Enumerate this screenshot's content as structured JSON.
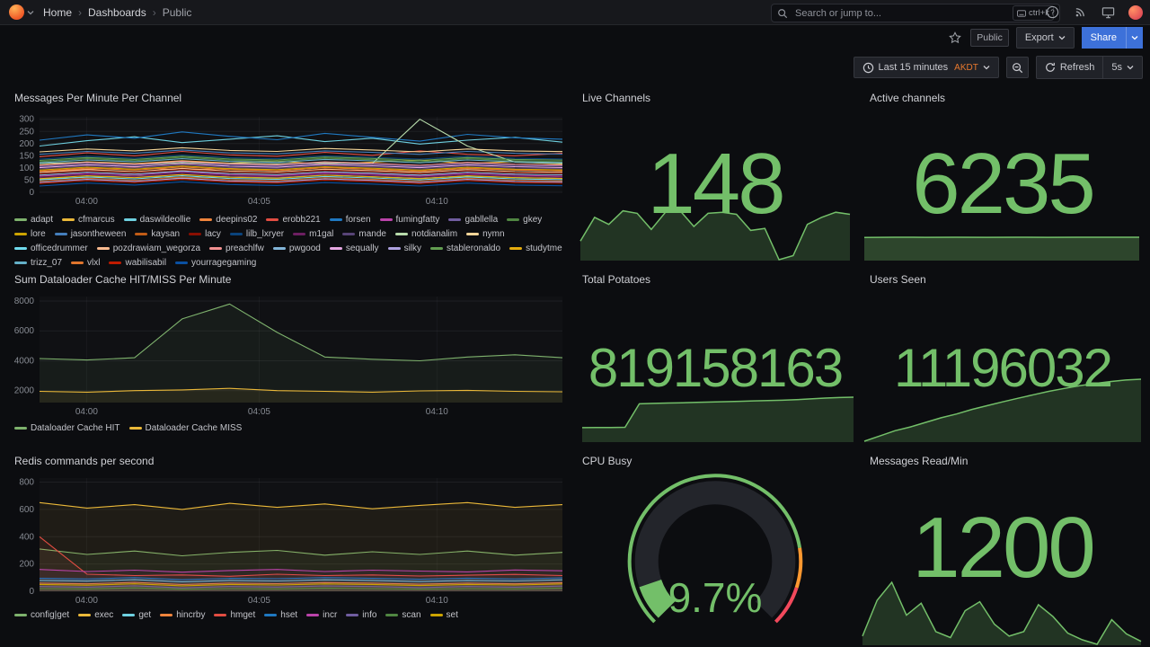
{
  "nav": {
    "breadcrumbs": [
      "Home",
      "Dashboards",
      "Public"
    ],
    "search_placeholder": "Search or jump to...",
    "search_shortcut": "ctrl+k"
  },
  "toolbar": {
    "visibility_badge": "Public",
    "export_label": "Export",
    "share_label": "Share"
  },
  "timebar": {
    "range_label": "Last 15 minutes",
    "timezone": "AKDT",
    "refresh_label": "Refresh",
    "interval": "5s"
  },
  "icons": [
    "grafana-logo",
    "chevron-down",
    "search",
    "keyboard",
    "help-circle",
    "news",
    "monitor",
    "avatar",
    "star",
    "clock",
    "zoom-out",
    "refresh"
  ],
  "colors": {
    "background": "#0c0d10",
    "stat_green": "#73BF69",
    "share_blue": "#3d71d9",
    "timezone_orange": "#e8792e"
  },
  "panels": {
    "messages": {
      "title": "Messages Per Minute Per Channel"
    },
    "live_channels": {
      "title": "Live Channels",
      "value": "148"
    },
    "active_channels": {
      "title": "Active channels",
      "value": "6235"
    },
    "dataloader": {
      "title": "Sum Dataloader Cache HIT/MISS Per Minute"
    },
    "total_potatoes": {
      "title": "Total Potatoes",
      "value": "819158163"
    },
    "users_seen": {
      "title": "Users Seen",
      "value": "11196032"
    },
    "redis": {
      "title": "Redis commands per second"
    },
    "cpu": {
      "title": "CPU Busy",
      "value": "9.7%"
    },
    "messages_read": {
      "title": "Messages Read/Min",
      "value": "1200"
    }
  },
  "chart_data": {
    "messages_per_minute": {
      "type": "line",
      "title": "Messages Per Minute Per Channel",
      "ylim": [
        0,
        310
      ],
      "yticks": [
        0,
        50,
        100,
        150,
        200,
        250,
        300
      ],
      "xticks": [
        {
          "label": "04:00",
          "pos": 0.09
        },
        {
          "label": "04:05",
          "pos": 0.42
        },
        {
          "label": "04:10",
          "pos": 0.76
        }
      ],
      "fill": false,
      "series": [
        {
          "name": "adapt",
          "color": "#7EB26D",
          "values": [
            55,
            62,
            70,
            58,
            66,
            60,
            72,
            64,
            58,
            66,
            61,
            57
          ]
        },
        {
          "name": "cfmarcus",
          "color": "#EAB839",
          "values": [
            112,
            125,
            118,
            130,
            120,
            128,
            115,
            124,
            132,
            119,
            126,
            116
          ]
        },
        {
          "name": "daswildeollie",
          "color": "#6ED0E0",
          "values": [
            190,
            212,
            228,
            204,
            218,
            232,
            208,
            222,
            198,
            214,
            226,
            206
          ]
        },
        {
          "name": "deepins02",
          "color": "#EF843C",
          "values": [
            86,
            95,
            104,
            90,
            98,
            88,
            102,
            94,
            86,
            98,
            92,
            88
          ]
        },
        {
          "name": "erobb221",
          "color": "#E24D42",
          "values": [
            146,
            162,
            150,
            168,
            154,
            148,
            164,
            152,
            170,
            156,
            150,
            160
          ]
        },
        {
          "name": "forsen",
          "color": "#1F78C1",
          "values": [
            214,
            236,
            222,
            248,
            230,
            216,
            242,
            226,
            210,
            238,
            224,
            218
          ]
        },
        {
          "name": "fumingfatty",
          "color": "#BA43A9",
          "values": [
            66,
            78,
            70,
            84,
            72,
            68,
            80,
            74,
            66,
            78,
            70,
            66
          ]
        },
        {
          "name": "gabllella",
          "color": "#705DA0",
          "values": [
            106,
            118,
            110,
            124,
            112,
            108,
            120,
            114,
            106,
            118,
            110,
            108
          ]
        },
        {
          "name": "gkey",
          "color": "#508642",
          "values": [
            126,
            138,
            130,
            144,
            132,
            128,
            140,
            134,
            126,
            138,
            130,
            126
          ]
        },
        {
          "name": "lore",
          "color": "#CCA300",
          "values": [
            91,
            103,
            95,
            108,
            97,
            93,
            105,
            99,
            91,
            103,
            95,
            92
          ]
        },
        {
          "name": "jasontheween",
          "color": "#447EBC",
          "values": [
            156,
            168,
            160,
            174,
            162,
            158,
            170,
            164,
            156,
            168,
            160,
            157
          ]
        },
        {
          "name": "kaysan",
          "color": "#C15C17",
          "values": [
            46,
            58,
            50,
            63,
            52,
            48,
            60,
            54,
            46,
            58,
            50,
            47
          ]
        },
        {
          "name": "lacy",
          "color": "#890F02",
          "values": [
            76,
            88,
            80,
            93,
            82,
            78,
            90,
            84,
            76,
            88,
            80,
            77
          ]
        },
        {
          "name": "lilb_lxryer",
          "color": "#0A437C",
          "values": [
            136,
            148,
            140,
            153,
            142,
            138,
            150,
            144,
            136,
            148,
            140,
            137
          ]
        },
        {
          "name": "m1gal",
          "color": "#6D1F62",
          "values": [
            61,
            73,
            65,
            78,
            67,
            63,
            75,
            69,
            61,
            73,
            65,
            62
          ]
        },
        {
          "name": "mande",
          "color": "#584477",
          "values": [
            96,
            108,
            100,
            113,
            102,
            98,
            110,
            104,
            96,
            108,
            100,
            97
          ]
        },
        {
          "name": "notdianalim",
          "color": "#B7DBAB",
          "values": [
            118,
            124,
            116,
            122,
            119,
            117,
            121,
            118,
            300,
            190,
            124,
            118
          ]
        },
        {
          "name": "nymn",
          "color": "#F4D598",
          "values": [
            166,
            178,
            170,
            183,
            172,
            168,
            180,
            174,
            166,
            178,
            170,
            167
          ]
        },
        {
          "name": "officedrummer",
          "color": "#70DBED",
          "values": [
            51,
            63,
            55,
            68,
            57,
            53,
            65,
            59,
            51,
            63,
            55,
            52
          ]
        },
        {
          "name": "pozdrawiam_wegorza",
          "color": "#F9BA8F",
          "values": [
            81,
            93,
            85,
            98,
            87,
            83,
            95,
            89,
            81,
            93,
            85,
            82
          ]
        },
        {
          "name": "preachlfw",
          "color": "#F29191",
          "values": [
            111,
            123,
            115,
            128,
            117,
            113,
            125,
            119,
            111,
            123,
            115,
            112
          ]
        },
        {
          "name": "pwgood",
          "color": "#82B5D8",
          "values": [
            71,
            83,
            75,
            88,
            77,
            73,
            85,
            79,
            71,
            83,
            75,
            72
          ]
        },
        {
          "name": "sequally",
          "color": "#E5A8E2",
          "values": [
            101,
            113,
            105,
            118,
            107,
            103,
            115,
            109,
            101,
            113,
            105,
            102
          ]
        },
        {
          "name": "silky",
          "color": "#AEA2E0",
          "values": [
            41,
            53,
            45,
            58,
            47,
            43,
            55,
            49,
            41,
            53,
            45,
            42
          ]
        },
        {
          "name": "stableronaldo",
          "color": "#629E51",
          "values": [
            131,
            143,
            135,
            148,
            137,
            133,
            145,
            139,
            131,
            143,
            135,
            132
          ]
        },
        {
          "name": "studytme",
          "color": "#E5AC0E",
          "values": [
            56,
            68,
            60,
            73,
            62,
            58,
            70,
            64,
            56,
            68,
            60,
            57
          ]
        },
        {
          "name": "trizz_07",
          "color": "#64B0C8",
          "values": [
            121,
            133,
            125,
            138,
            127,
            123,
            135,
            129,
            121,
            133,
            125,
            122
          ]
        },
        {
          "name": "vlxl",
          "color": "#E0752D",
          "values": [
            87,
            99,
            91,
            104,
            93,
            89,
            101,
            95,
            87,
            99,
            91,
            88
          ]
        },
        {
          "name": "wabilisabil",
          "color": "#BF1B00",
          "values": [
            36,
            48,
            40,
            53,
            42,
            38,
            50,
            44,
            36,
            48,
            40,
            37
          ]
        },
        {
          "name": "yourragegaming",
          "color": "#0A50A1",
          "values": [
            26,
            38,
            30,
            43,
            32,
            28,
            40,
            34,
            26,
            38,
            30,
            27
          ]
        }
      ]
    },
    "dataloader_cache": {
      "type": "line",
      "title": "Sum Dataloader Cache HIT/MISS Per Minute",
      "ylim": [
        1200,
        8300
      ],
      "yticks": [
        2000,
        4000,
        6000,
        8000
      ],
      "xticks": [
        {
          "label": "04:00",
          "pos": 0.09
        },
        {
          "label": "04:05",
          "pos": 0.42
        },
        {
          "label": "04:10",
          "pos": 0.76
        }
      ],
      "fill": true,
      "series": [
        {
          "name": "Dataloader Cache HIT",
          "color": "#7EB26D",
          "values": [
            4150,
            4050,
            4200,
            6800,
            7800,
            5900,
            4250,
            4100,
            4000,
            4250,
            4400,
            4200
          ]
        },
        {
          "name": "Dataloader Cache MISS",
          "color": "#EAB839",
          "values": [
            1950,
            1900,
            2000,
            2050,
            2150,
            2000,
            1950,
            1900,
            1980,
            2020,
            1950,
            1920
          ]
        }
      ]
    },
    "redis_commands": {
      "type": "line",
      "title": "Redis commands per second",
      "ylim": [
        0,
        830
      ],
      "yticks": [
        0,
        200,
        400,
        600,
        800
      ],
      "xticks": [
        {
          "label": "04:00",
          "pos": 0.09
        },
        {
          "label": "04:05",
          "pos": 0.42
        },
        {
          "label": "04:10",
          "pos": 0.76
        }
      ],
      "fill": true,
      "series": [
        {
          "name": "config|get",
          "color": "#7EB26D",
          "values": [
            310,
            270,
            295,
            260,
            285,
            300,
            265,
            290,
            270,
            295,
            265,
            285
          ]
        },
        {
          "name": "exec",
          "color": "#EAB839",
          "values": [
            650,
            610,
            635,
            600,
            645,
            615,
            640,
            605,
            630,
            650,
            615,
            635
          ]
        },
        {
          "name": "get",
          "color": "#6ED0E0",
          "values": [
            80,
            75,
            85,
            70,
            80,
            76,
            84,
            80,
            72,
            80,
            76,
            84
          ]
        },
        {
          "name": "hincrby",
          "color": "#EF843C",
          "values": [
            60,
            55,
            65,
            50,
            60,
            56,
            64,
            60,
            52,
            60,
            55,
            63
          ]
        },
        {
          "name": "hmget",
          "color": "#E24D42",
          "values": [
            400,
            125,
            115,
            120,
            110,
            125,
            115,
            120,
            112,
            118,
            124,
            115
          ]
        },
        {
          "name": "hset",
          "color": "#1F78C1",
          "values": [
            95,
            90,
            100,
            85,
            95,
            92,
            100,
            95,
            88,
            96,
            90,
            98
          ]
        },
        {
          "name": "incr",
          "color": "#BA43A9",
          "values": [
            160,
            145,
            155,
            140,
            152,
            160,
            145,
            155,
            148,
            142,
            156,
            150
          ]
        },
        {
          "name": "info",
          "color": "#705DA0",
          "values": [
            35,
            30,
            40,
            25,
            35,
            31,
            39,
            35,
            27,
            35,
            30,
            38
          ]
        },
        {
          "name": "scan",
          "color": "#508642",
          "values": [
            20,
            18,
            25,
            15,
            20,
            18,
            24,
            20,
            16,
            20,
            18,
            24
          ]
        },
        {
          "name": "set",
          "color": "#CCA300",
          "values": [
            50,
            45,
            55,
            40,
            50,
            46,
            54,
            50,
            42,
            50,
            46,
            54
          ]
        }
      ]
    },
    "cpu_gauge": {
      "type": "gauge",
      "title": "CPU Busy",
      "value": 9.7,
      "unit": "%",
      "min": 0,
      "max": 100,
      "thresholds": [
        {
          "value": 0,
          "color": "#73BF69"
        },
        {
          "value": 80,
          "color": "#FF9830"
        },
        {
          "value": 90,
          "color": "#F2495C"
        }
      ]
    },
    "sparklines": {
      "live_channels": {
        "type": "area",
        "color": "#73BF69",
        "fill_opacity": 0.22,
        "values": [
          95,
          142,
          128,
          155,
          150,
          118,
          152,
          156,
          124,
          150,
          152,
          148,
          116,
          120,
          58,
          66,
          128,
          142,
          152,
          148
        ]
      },
      "active_channels": {
        "type": "area",
        "color": "#73BF69",
        "fill_opacity": 0.32,
        "ymin": 0,
        "values": [
          6180,
          6230,
          6200,
          6235,
          6220,
          6235,
          6210,
          6235,
          6225,
          6235
        ]
      },
      "total_potatoes": {
        "type": "area",
        "color": "#73BF69",
        "fill_opacity": 0.22,
        "ymin": 0,
        "values": [
          205,
          208,
          206,
          210,
          565,
          572,
          578,
          582,
          588,
          592,
          598,
          604,
          610,
          615,
          620,
          628,
          640,
          652,
          660,
          666
        ]
      },
      "users_seen": {
        "type": "area",
        "color": "#73BF69",
        "fill_opacity": 0.22,
        "values": [
          10900,
          10925,
          10950,
          10968,
          10990,
          11012,
          11030,
          11052,
          11070,
          11088,
          11105,
          11122,
          11138,
          11152,
          11165,
          11176,
          11185,
          11192,
          11196
        ]
      },
      "messages_read": {
        "type": "area",
        "color": "#73BF69",
        "fill_opacity": 0.22,
        "values": [
          1280,
          1520,
          1640,
          1420,
          1500,
          1310,
          1270,
          1450,
          1510,
          1360,
          1280,
          1310,
          1490,
          1410,
          1300,
          1255,
          1225,
          1390,
          1295,
          1245
        ]
      }
    }
  }
}
